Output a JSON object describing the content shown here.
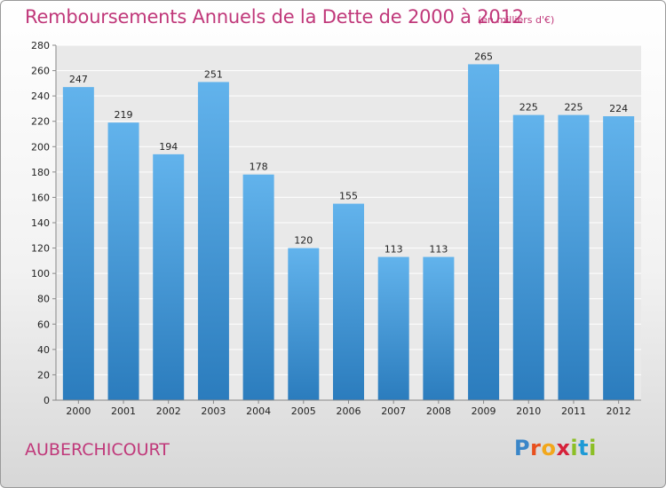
{
  "header": {
    "title": "Remboursements Annuels de la Dette de 2000 à 2012",
    "unit": "(en milliers d'€)"
  },
  "footer": {
    "commune": "AUBERCHICOURT",
    "logo": {
      "letters": [
        "P",
        "r",
        "o",
        "x",
        "i",
        "t",
        "i"
      ],
      "colors": [
        "#3a86c8",
        "#e8501e",
        "#f2a71b",
        "#d6213a",
        "#8cbf26",
        "#1e9ad6",
        "#8cbf26"
      ]
    }
  },
  "colors": {
    "text_accent": "#c0387a",
    "bar_top": "#62b3ec",
    "bar_bottom": "#2b7cbd"
  },
  "chart_data": {
    "type": "bar",
    "title": "Remboursements Annuels de la Dette de 2000 à 2012",
    "categories": [
      "2000",
      "2001",
      "2002",
      "2003",
      "2004",
      "2005",
      "2006",
      "2007",
      "2008",
      "2009",
      "2010",
      "2011",
      "2012"
    ],
    "values": [
      247,
      219,
      194,
      251,
      178,
      120,
      155,
      113,
      113,
      265,
      225,
      225,
      224
    ],
    "ylim": [
      0,
      280
    ],
    "yticks": [
      0,
      20,
      40,
      60,
      80,
      100,
      120,
      140,
      160,
      180,
      200,
      220,
      240,
      260,
      280
    ],
    "grid": true,
    "xlabel": "",
    "ylabel": ""
  }
}
